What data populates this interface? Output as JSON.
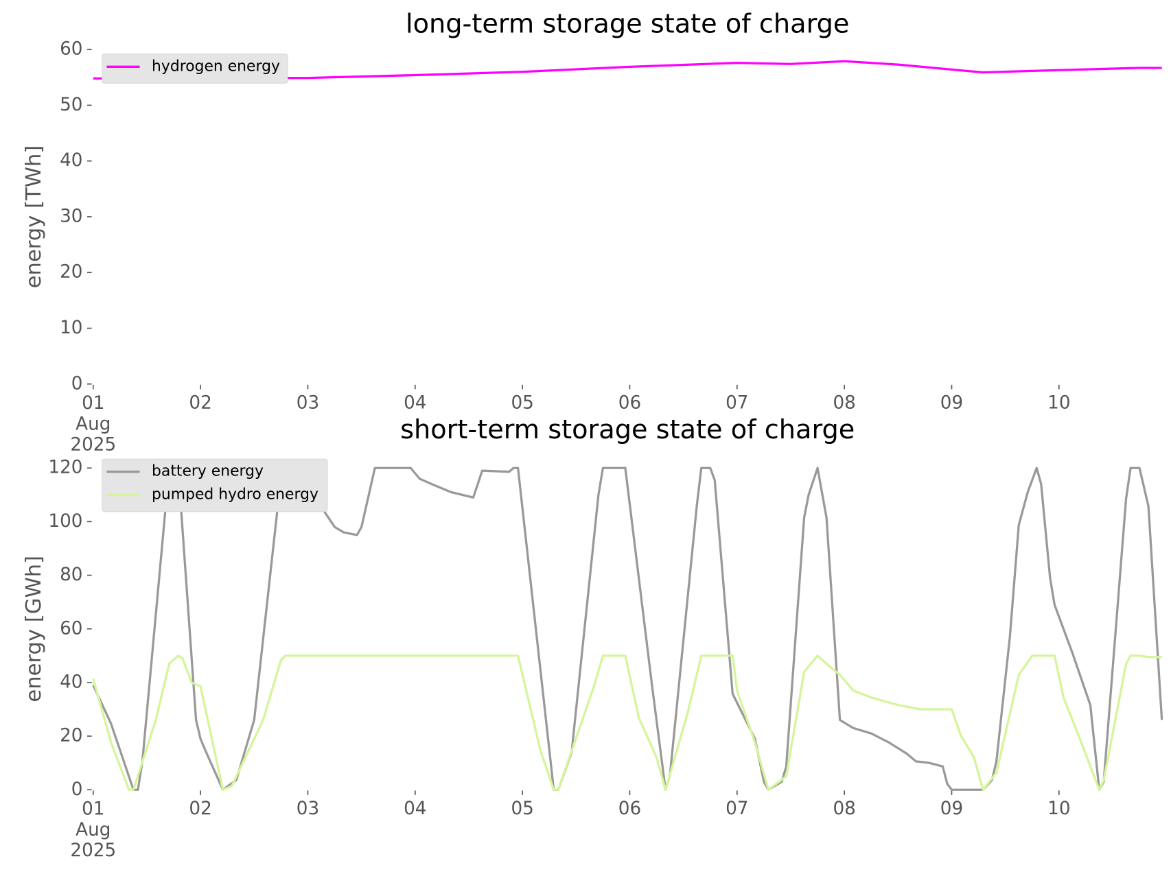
{
  "chart_data": [
    {
      "type": "line",
      "title": "long-term storage state of charge",
      "y_label": "energy [TWh]",
      "xlim": [
        0,
        239
      ],
      "ylim": [
        0,
        60
      ],
      "xticks": [
        {
          "value": 0,
          "label": "01\nAug\n2025"
        },
        {
          "value": 24,
          "label": "02"
        },
        {
          "value": 48,
          "label": "03"
        },
        {
          "value": 72,
          "label": "04"
        },
        {
          "value": 96,
          "label": "05"
        },
        {
          "value": 120,
          "label": "06"
        },
        {
          "value": 144,
          "label": "07"
        },
        {
          "value": 168,
          "label": "08"
        },
        {
          "value": 192,
          "label": "09"
        },
        {
          "value": 216,
          "label": "10"
        }
      ],
      "yticks": [
        0,
        10,
        20,
        30,
        40,
        50,
        60
      ],
      "legend": "upper left",
      "series": [
        {
          "name": "hydrogen energy",
          "color": "#ff00ff",
          "x": [
            0,
            24,
            48,
            72,
            96,
            120,
            144,
            156,
            168,
            180,
            192,
            199,
            216,
            234,
            239
          ],
          "values": [
            54.8,
            54.9,
            54.9,
            55.4,
            56,
            56.9,
            57.6,
            57.4,
            57.9,
            57.3,
            56.4,
            55.9,
            56.3,
            56.7,
            56.7
          ]
        }
      ]
    },
    {
      "type": "line",
      "title": "short-term storage state of charge",
      "y_label": "energy [GWh]",
      "xlim": [
        0,
        239
      ],
      "ylim": [
        0,
        120
      ],
      "xticks": [
        {
          "value": 0,
          "label": "01\nAug\n2025"
        },
        {
          "value": 24,
          "label": "02"
        },
        {
          "value": 48,
          "label": "03"
        },
        {
          "value": 72,
          "label": "04"
        },
        {
          "value": 96,
          "label": "05"
        },
        {
          "value": 120,
          "label": "06"
        },
        {
          "value": 144,
          "label": "07"
        },
        {
          "value": 168,
          "label": "08"
        },
        {
          "value": 192,
          "label": "09"
        },
        {
          "value": 216,
          "label": "10"
        }
      ],
      "yticks": [
        0,
        20,
        40,
        60,
        80,
        100,
        120
      ],
      "legend": "upper left",
      "series": [
        {
          "name": "battery energy",
          "color": "#999999",
          "x": [
            0,
            4,
            9,
            10,
            11,
            17,
            19,
            23,
            24,
            25,
            29,
            32,
            36,
            42,
            43,
            45,
            46,
            47,
            48,
            52,
            54,
            56,
            59,
            60,
            63,
            71,
            73,
            76,
            80,
            85,
            87,
            93,
            94,
            95,
            103,
            104,
            107,
            113,
            114,
            119,
            125,
            128,
            129,
            135,
            136,
            138,
            139,
            143,
            148,
            150,
            151,
            154,
            155,
            159,
            160,
            162,
            164,
            167,
            170,
            174,
            178,
            182,
            184,
            187,
            190,
            191,
            192,
            199,
            201,
            202,
            205,
            207,
            209,
            211,
            212,
            214,
            215,
            219,
            223,
            225,
            226,
            231,
            232,
            234,
            236,
            239
          ],
          "values": [
            39,
            24.6,
            0,
            0,
            10.6,
            120,
            120,
            26,
            19,
            15,
            0,
            3.6,
            26,
            116.6,
            120,
            119.5,
            117.8,
            120,
            113,
            103,
            98,
            96,
            95,
            98,
            120,
            120,
            116,
            113.8,
            111,
            109,
            119,
            118.6,
            120,
            120,
            0,
            0,
            14,
            110,
            120,
            120,
            38.6,
            0,
            5.6,
            106,
            120,
            120,
            115.5,
            35.8,
            19,
            3,
            0,
            3,
            8.7,
            101.5,
            110,
            120,
            101.5,
            26,
            23,
            21,
            17.6,
            13.4,
            10.6,
            10,
            8.7,
            2.2,
            0,
            0,
            3.6,
            10.6,
            56.8,
            98.7,
            111,
            120,
            114,
            79,
            69,
            51,
            31.6,
            0,
            3,
            108.5,
            120,
            120,
            105.7,
            26
          ]
        },
        {
          "name": "pumped hydro energy",
          "color": "#d4f59a",
          "x": [
            0,
            4,
            8,
            9,
            14,
            17,
            19,
            20,
            22,
            24,
            29,
            31,
            38,
            42,
            43,
            95,
            100,
            103,
            104,
            112,
            114,
            119,
            122,
            126,
            128,
            133,
            136,
            143,
            144,
            148,
            151,
            155,
            159,
            162,
            164,
            167,
            170,
            174,
            180,
            185,
            192,
            194,
            197,
            199,
            202,
            207,
            210,
            215,
            217,
            221,
            225,
            226,
            231,
            232,
            234,
            236,
            239
          ],
          "values": [
            41.4,
            17.6,
            0,
            0,
            26,
            47,
            50,
            49,
            40,
            38.6,
            0,
            1.4,
            26,
            48.4,
            50,
            50,
            14.8,
            0,
            0,
            38.6,
            50,
            50,
            27,
            12,
            0,
            29,
            50,
            50,
            37,
            17.6,
            0,
            5,
            44,
            50,
            47,
            42.8,
            37,
            34.4,
            31.6,
            30,
            30,
            20.4,
            12,
            0,
            6.4,
            42.8,
            50,
            50,
            34.4,
            17.6,
            0,
            3.6,
            47,
            50,
            50,
            49.5,
            49.5
          ]
        }
      ]
    }
  ]
}
